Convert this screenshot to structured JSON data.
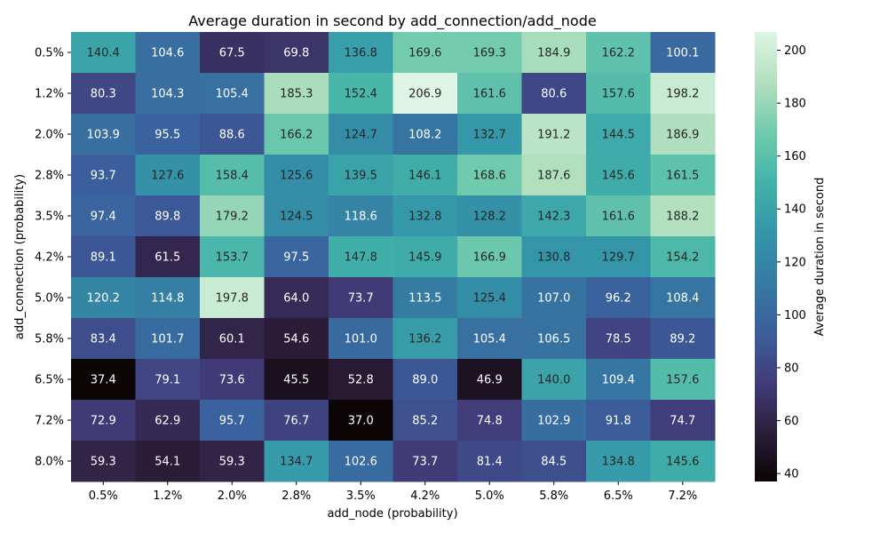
{
  "chart_data": {
    "type": "heatmap",
    "title": "Average duration in second by add_connection/add_node",
    "xlabel": "add_node (probability)",
    "ylabel": "add_connection (probability)",
    "x_categories": [
      "0.5%",
      "1.2%",
      "2.0%",
      "2.8%",
      "3.5%",
      "4.2%",
      "5.0%",
      "5.8%",
      "6.5%",
      "7.2%"
    ],
    "y_categories": [
      "0.5%",
      "1.2%",
      "2.0%",
      "2.8%",
      "3.5%",
      "4.2%",
      "5.0%",
      "5.8%",
      "6.5%",
      "7.2%",
      "8.0%"
    ],
    "values": [
      [
        140.4,
        104.6,
        67.5,
        69.8,
        136.8,
        169.6,
        169.3,
        184.9,
        162.2,
        100.1
      ],
      [
        80.3,
        104.3,
        105.4,
        185.3,
        152.4,
        206.9,
        161.6,
        80.6,
        157.6,
        198.2
      ],
      [
        103.9,
        95.5,
        88.6,
        166.2,
        124.7,
        108.2,
        132.7,
        191.2,
        144.5,
        186.9
      ],
      [
        93.7,
        127.6,
        158.4,
        125.6,
        139.5,
        146.1,
        168.6,
        187.6,
        145.6,
        161.5
      ],
      [
        97.4,
        89.8,
        179.2,
        124.5,
        118.6,
        132.8,
        128.2,
        142.3,
        161.6,
        188.2
      ],
      [
        89.1,
        61.5,
        153.7,
        97.5,
        147.8,
        145.9,
        166.9,
        130.8,
        129.7,
        154.2
      ],
      [
        120.2,
        114.8,
        197.8,
        64.0,
        73.7,
        113.5,
        125.4,
        107.0,
        96.2,
        108.4
      ],
      [
        83.4,
        101.7,
        60.1,
        54.6,
        101.0,
        136.2,
        105.4,
        106.5,
        78.5,
        89.2
      ],
      [
        37.4,
        79.1,
        73.6,
        45.5,
        52.8,
        89.0,
        46.9,
        140.0,
        109.4,
        157.6
      ],
      [
        72.9,
        62.9,
        95.7,
        76.7,
        37.0,
        85.2,
        74.8,
        102.9,
        91.8,
        74.7
      ],
      [
        59.3,
        54.1,
        59.3,
        134.7,
        102.6,
        73.7,
        81.4,
        84.5,
        134.8,
        145.6
      ]
    ],
    "colorbar": {
      "label": "Average duration in second",
      "min": 37.0,
      "max": 206.9,
      "ticks": [
        40,
        60,
        80,
        100,
        120,
        140,
        160,
        180,
        200
      ]
    },
    "colormap": "mako",
    "colormap_stops": [
      "#0b0405",
      "#2e1e3c",
      "#413d7b",
      "#3b5f9d",
      "#357ba3",
      "#3496a9",
      "#43b3a9",
      "#71cbad",
      "#b3e0bf",
      "#def5e5"
    ],
    "value_format": "1 decimal"
  }
}
